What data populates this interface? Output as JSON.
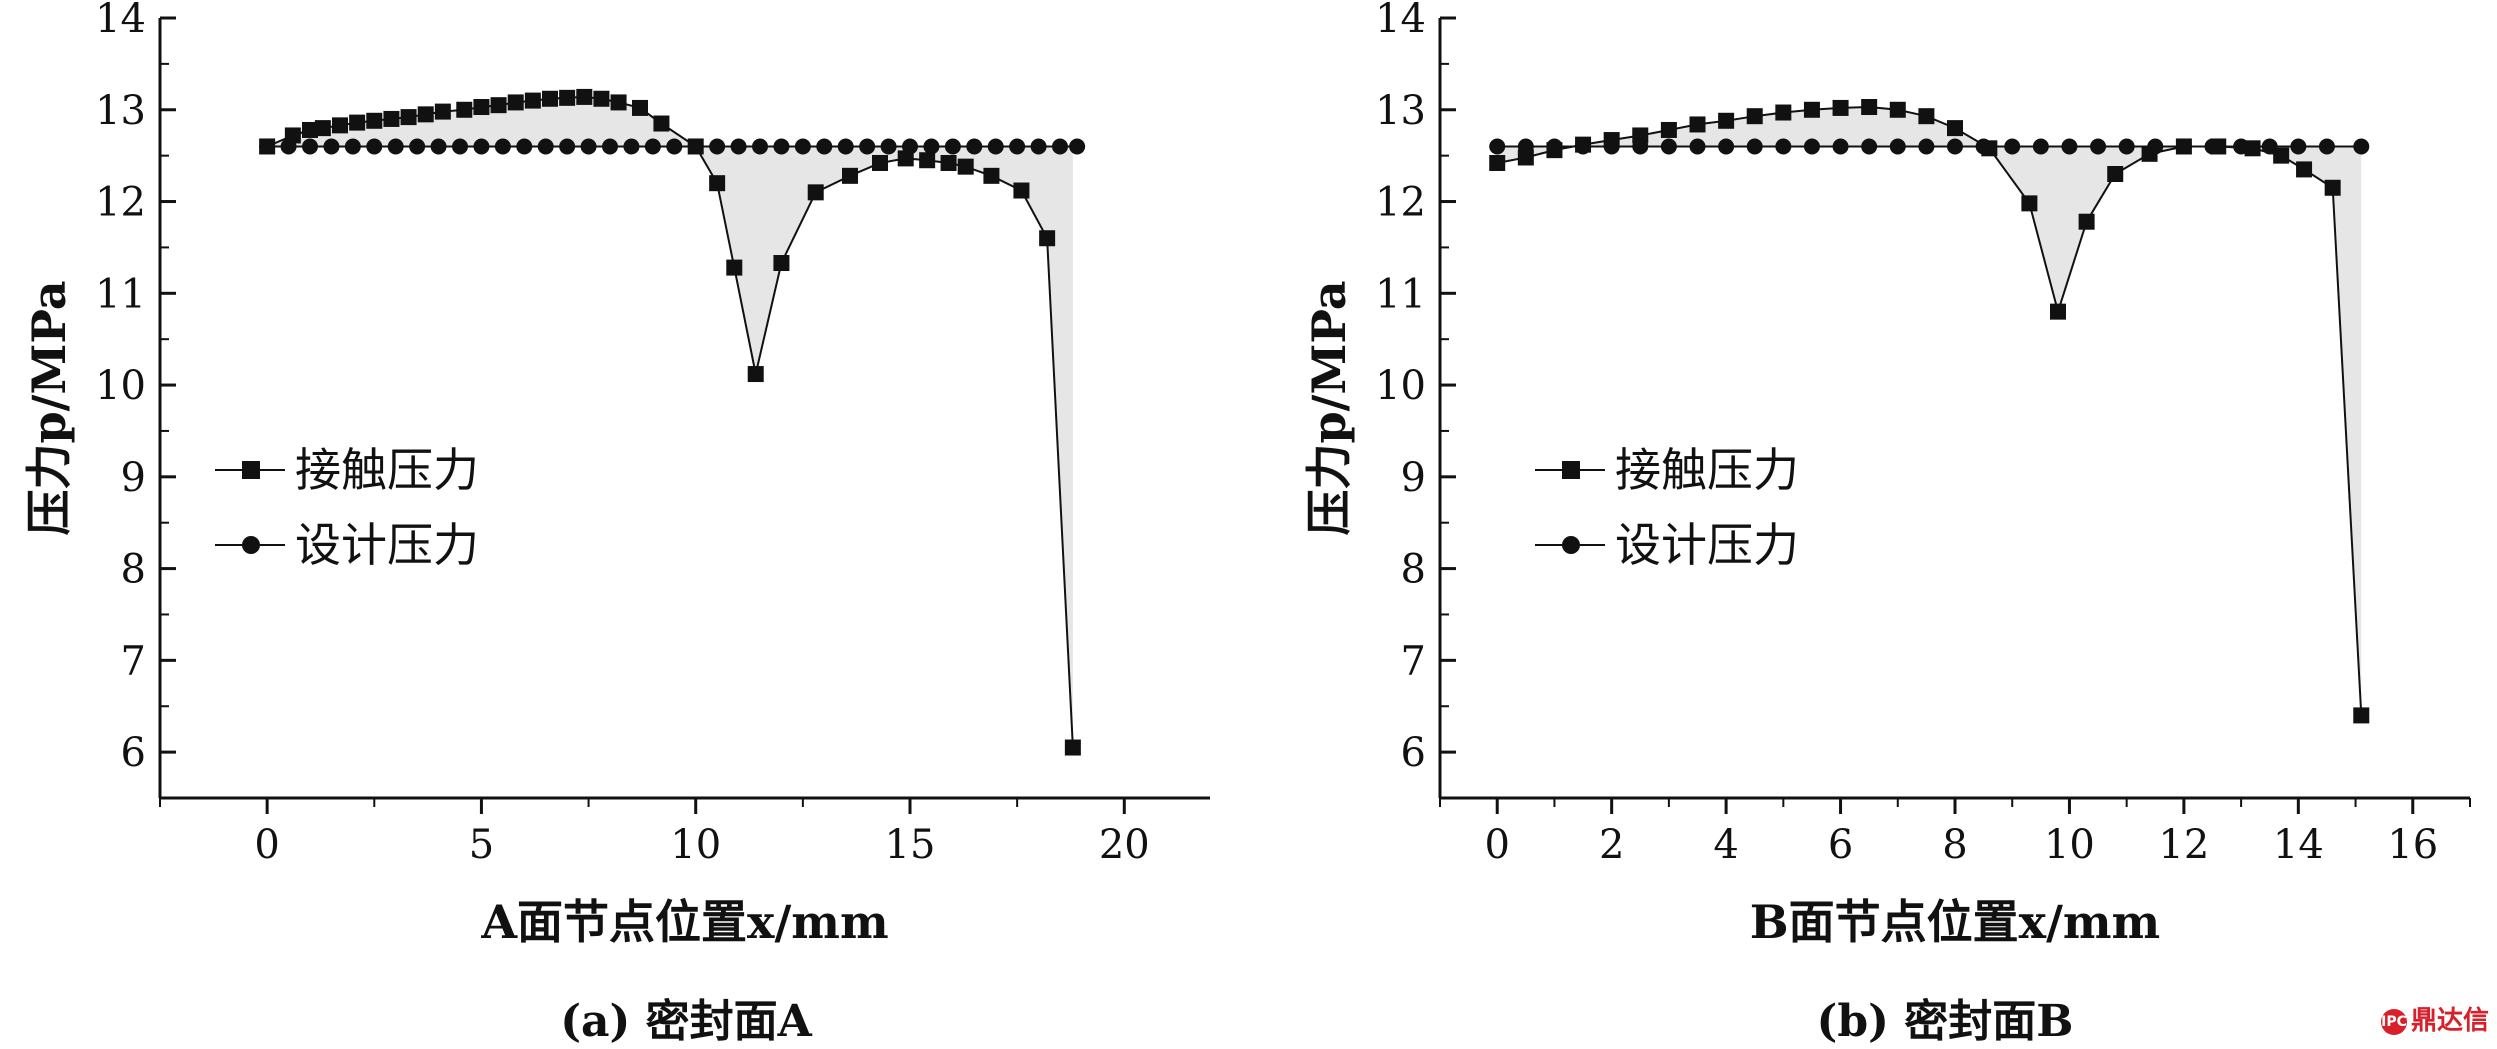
{
  "chart_data": [
    {
      "type": "line",
      "panel_caption": "(a) 密封面A",
      "xlabel": "A面节点位置x/mm",
      "ylabel": "压力p/MPa",
      "xlim": [
        -2.5,
        22
      ],
      "ylim": [
        5.5,
        14
      ],
      "xticks": [
        0,
        5,
        10,
        15,
        20
      ],
      "yticks": [
        6,
        7,
        8,
        9,
        10,
        11,
        12,
        13,
        14
      ],
      "legend_position": "middle-left",
      "series": [
        {
          "name": "接触压力",
          "marker": "square",
          "x": [
            0,
            0.6,
            1.0,
            1.3,
            1.7,
            2.1,
            2.5,
            2.9,
            3.3,
            3.7,
            4.1,
            4.6,
            5.0,
            5.4,
            5.8,
            6.2,
            6.6,
            7.0,
            7.4,
            7.8,
            8.2,
            8.7,
            9.2,
            10.0,
            10.5,
            10.9,
            11.4,
            12.0,
            12.8,
            13.6,
            14.3,
            14.9,
            15.4,
            15.9,
            16.3,
            16.9,
            17.6,
            18.2,
            18.8
          ],
          "y": [
            12.6,
            12.72,
            12.78,
            12.8,
            12.83,
            12.86,
            12.88,
            12.9,
            12.92,
            12.95,
            12.98,
            13.0,
            13.03,
            13.05,
            13.08,
            13.1,
            13.12,
            13.13,
            13.14,
            13.12,
            13.08,
            13.02,
            12.85,
            12.6,
            12.2,
            11.28,
            10.12,
            11.33,
            12.1,
            12.28,
            12.42,
            12.47,
            12.45,
            12.42,
            12.38,
            12.28,
            12.12,
            11.6,
            6.05
          ]
        },
        {
          "name": "设计压力",
          "marker": "circle",
          "x": [
            0,
            0.5,
            1.0,
            1.5,
            2.0,
            2.5,
            3.0,
            3.5,
            4.0,
            4.5,
            5.0,
            5.5,
            6.0,
            6.5,
            7.0,
            7.5,
            8.0,
            8.5,
            9.0,
            9.5,
            10.0,
            10.5,
            11.0,
            11.5,
            12.0,
            12.5,
            13.0,
            13.5,
            14.0,
            14.5,
            15.0,
            15.5,
            16.0,
            16.5,
            17.0,
            17.5,
            18.0,
            18.5,
            18.9
          ],
          "y": [
            12.6,
            12.6,
            12.6,
            12.6,
            12.6,
            12.6,
            12.6,
            12.6,
            12.6,
            12.6,
            12.6,
            12.6,
            12.6,
            12.6,
            12.6,
            12.6,
            12.6,
            12.6,
            12.6,
            12.6,
            12.6,
            12.6,
            12.6,
            12.6,
            12.6,
            12.6,
            12.6,
            12.6,
            12.6,
            12.6,
            12.6,
            12.6,
            12.6,
            12.6,
            12.6,
            12.6,
            12.6,
            12.6,
            12.6
          ]
        }
      ]
    },
    {
      "type": "line",
      "panel_caption": "(b) 密封面B",
      "xlabel": "B面节点位置x/mm",
      "ylabel": "压力p/MPa",
      "xlim": [
        -1,
        17
      ],
      "ylim": [
        5.5,
        14
      ],
      "xticks": [
        0,
        2,
        4,
        6,
        8,
        10,
        12,
        14,
        16
      ],
      "yticks": [
        6,
        7,
        8,
        9,
        10,
        11,
        12,
        13,
        14
      ],
      "legend_position": "middle-left",
      "series": [
        {
          "name": "接触压力",
          "marker": "square",
          "x": [
            0,
            0.5,
            1.0,
            1.5,
            2.0,
            2.5,
            3.0,
            3.5,
            4.0,
            4.5,
            5.0,
            5.5,
            6.0,
            6.5,
            7.0,
            7.5,
            8.0,
            8.6,
            9.3,
            9.8,
            10.3,
            10.8,
            11.4,
            12.0,
            12.6,
            13.2,
            13.7,
            14.1,
            14.6,
            15.1
          ],
          "y": [
            12.42,
            12.48,
            12.56,
            12.62,
            12.67,
            12.72,
            12.78,
            12.84,
            12.88,
            12.93,
            12.97,
            13.0,
            13.02,
            13.03,
            13.0,
            12.93,
            12.8,
            12.58,
            11.98,
            10.8,
            11.78,
            12.3,
            12.52,
            12.6,
            12.6,
            12.58,
            12.5,
            12.35,
            12.15,
            6.4
          ]
        },
        {
          "name": "设计压力",
          "marker": "circle",
          "x": [
            0,
            0.5,
            1.0,
            1.5,
            2.0,
            2.5,
            3.0,
            3.5,
            4.0,
            4.5,
            5.0,
            5.5,
            6.0,
            6.5,
            7.0,
            7.5,
            8.0,
            8.5,
            9.0,
            9.5,
            10.0,
            10.5,
            11.0,
            11.5,
            12.0,
            12.5,
            13.0,
            13.5,
            14.0,
            14.5,
            15.1
          ],
          "y": [
            12.6,
            12.6,
            12.6,
            12.6,
            12.6,
            12.6,
            12.6,
            12.6,
            12.6,
            12.6,
            12.6,
            12.6,
            12.6,
            12.6,
            12.6,
            12.6,
            12.6,
            12.6,
            12.6,
            12.6,
            12.6,
            12.6,
            12.6,
            12.6,
            12.6,
            12.6,
            12.6,
            12.6,
            12.6,
            12.6,
            12.6
          ]
        }
      ]
    }
  ],
  "watermark": "鼎达信",
  "watermark_logo": "IPC",
  "colors": {
    "ink": "#111111",
    "shade": "#e6e6e6",
    "watermark": "#d8202a"
  }
}
